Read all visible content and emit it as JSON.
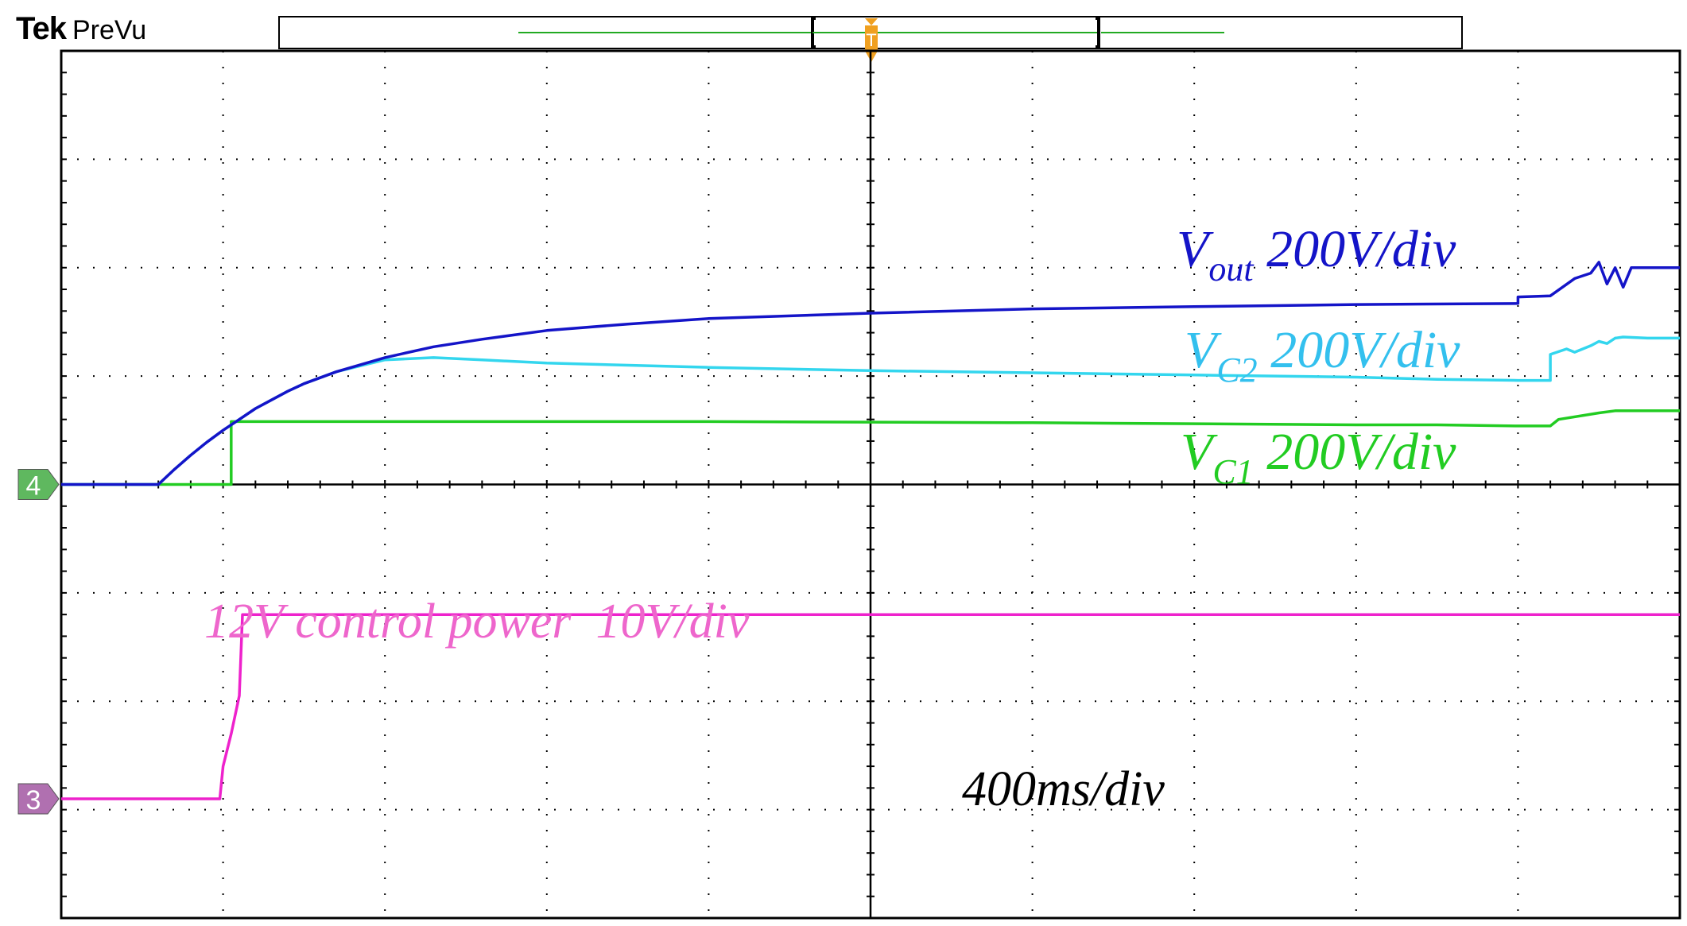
{
  "header": {
    "brand": "Tek",
    "mode": "PreVu"
  },
  "trigger_marker": "T",
  "chart_data": {
    "type": "line",
    "instrument": "oscilloscope",
    "grid": true,
    "x_divisions": 10,
    "y_divisions": 8,
    "xlim": [
      0,
      10
    ],
    "ylim": [
      -4,
      4
    ],
    "time_per_div": "400ms/div",
    "channel_markers": [
      {
        "label": "4",
        "ground_div": 0,
        "color": "#5fb85f"
      },
      {
        "label": "3",
        "ground_div": -2.9,
        "color": "#b070b0"
      }
    ],
    "series": [
      {
        "name": "Vout",
        "subscript": "out",
        "scale": "200V/div",
        "channel": "4",
        "color": "#1414c8",
        "x": [
          0,
          0.6,
          0.7,
          0.8,
          0.9,
          1.0,
          1.1,
          1.2,
          1.3,
          1.4,
          1.5,
          1.7,
          2.0,
          2.3,
          2.6,
          3.0,
          3.5,
          4.0,
          5.0,
          6.0,
          7.0,
          8.0,
          9.0,
          9.0,
          9.2,
          9.35,
          9.45,
          9.5,
          9.55,
          9.6,
          9.65,
          9.7,
          9.8,
          10.0
        ],
        "y": [
          0,
          0,
          0.14,
          0.27,
          0.39,
          0.5,
          0.6,
          0.7,
          0.78,
          0.86,
          0.93,
          1.04,
          1.17,
          1.27,
          1.34,
          1.42,
          1.48,
          1.53,
          1.58,
          1.62,
          1.64,
          1.66,
          1.67,
          1.73,
          1.74,
          1.9,
          1.95,
          2.05,
          1.85,
          2.0,
          1.82,
          2.0,
          2.0,
          2.0
        ]
      },
      {
        "name": "VC2",
        "subscript": "C2",
        "scale": "200V/div",
        "channel": "4",
        "color": "#33d6ee",
        "x": [
          0,
          0.6,
          0.7,
          0.8,
          0.9,
          1.0,
          1.1,
          1.2,
          1.3,
          1.4,
          1.5,
          1.7,
          2.0,
          2.3,
          2.6,
          3.0,
          4.0,
          5.0,
          6.0,
          7.0,
          8.0,
          8.5,
          9.0,
          9.2,
          9.2,
          9.3,
          9.35,
          9.45,
          9.5,
          9.55,
          9.6,
          9.65,
          9.8,
          10.0
        ],
        "y": [
          0,
          0,
          0.14,
          0.27,
          0.39,
          0.5,
          0.6,
          0.7,
          0.78,
          0.86,
          0.93,
          1.04,
          1.15,
          1.17,
          1.15,
          1.12,
          1.08,
          1.05,
          1.03,
          1.01,
          0.99,
          0.97,
          0.96,
          0.96,
          1.2,
          1.25,
          1.22,
          1.28,
          1.32,
          1.3,
          1.35,
          1.36,
          1.35,
          1.35
        ]
      },
      {
        "name": "VC1",
        "subscript": "C1",
        "scale": "200V/div",
        "channel": "4",
        "color": "#22cc22",
        "x": [
          0,
          1.05,
          1.05,
          2.0,
          4.0,
          6.0,
          8.0,
          8.5,
          9.0,
          9.2,
          9.25,
          9.5,
          9.6,
          10.0
        ],
        "y": [
          0,
          0,
          0.58,
          0.58,
          0.58,
          0.57,
          0.55,
          0.55,
          0.54,
          0.54,
          0.6,
          0.66,
          0.68,
          0.68
        ]
      },
      {
        "name": "12V control power",
        "scale": "10V/div",
        "channel": "3",
        "color": "#ee22cc",
        "x": [
          0,
          0.98,
          1.0,
          1.05,
          1.1,
          1.12,
          2.0,
          4.0,
          6.0,
          8.0,
          10.0
        ],
        "y": [
          -2.9,
          -2.9,
          -2.6,
          -2.3,
          -1.95,
          -1.2,
          -1.2,
          -1.2,
          -1.2,
          -1.2,
          -1.2
        ]
      }
    ],
    "annotations": {
      "vout": {
        "main": "V",
        "sub": "out",
        "rest": " 200V/div",
        "color": "#1414c8"
      },
      "vc2": {
        "main": "V",
        "sub": "C2",
        "rest": " 200V/div",
        "color": "#33c0ee"
      },
      "vc1": {
        "main": "V",
        "sub": "C1",
        "rest": " 200V/div",
        "color": "#22cc22"
      },
      "control": {
        "text": "12V control power  10V/div",
        "color": "#ee66cc"
      },
      "timebase": {
        "text": "400ms/div",
        "color": "#000000"
      }
    }
  }
}
